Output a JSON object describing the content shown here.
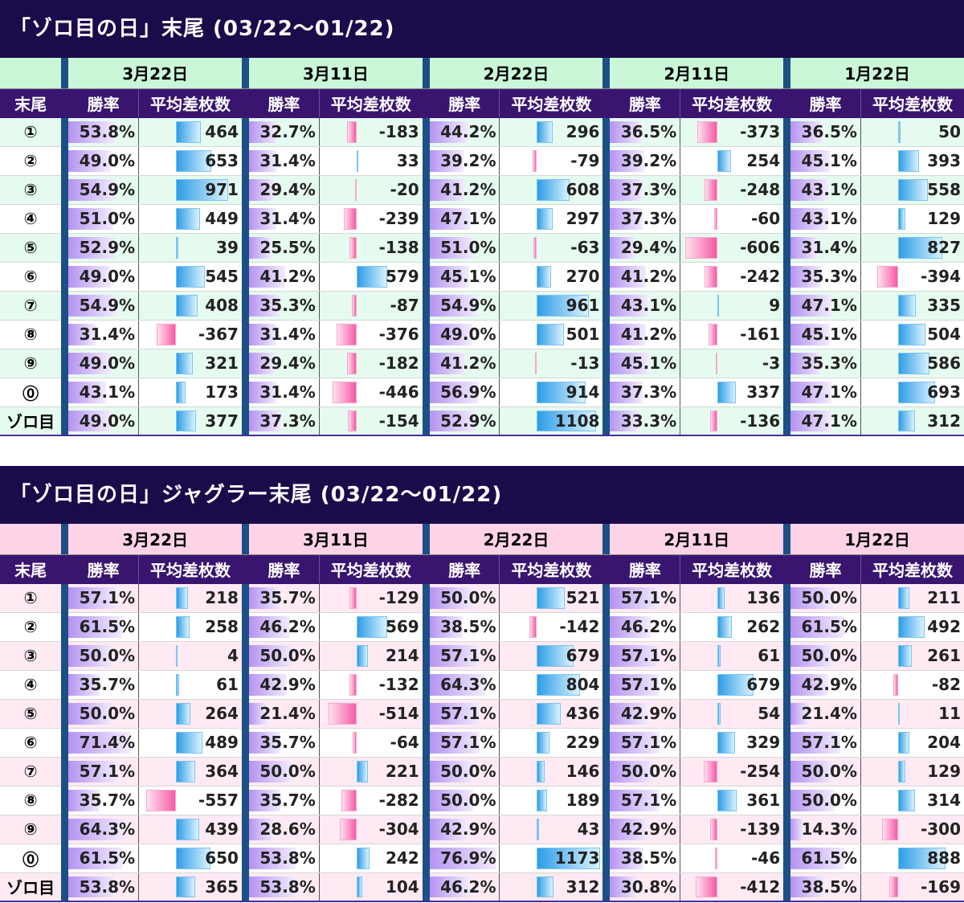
{
  "sections": [
    {
      "title": "「ゾロ目の日」末尾 (03/22〜01/22)",
      "theme_color": "#c9f7d8",
      "row_label_header": "末尾",
      "dates": [
        "3月22日",
        "3月11日",
        "2月22日",
        "2月11日",
        "1月22日"
      ],
      "col_headers": {
        "win_rate": "勝率",
        "avg_diff": "平均差枚数"
      },
      "bar_scale_max": 1200,
      "rows": [
        {
          "label": "①",
          "cells": [
            [
              "53.8%",
              "464"
            ],
            [
              "32.7%",
              "-183"
            ],
            [
              "44.2%",
              "296"
            ],
            [
              "36.5%",
              "-373"
            ],
            [
              "36.5%",
              "50"
            ]
          ]
        },
        {
          "label": "②",
          "cells": [
            [
              "49.0%",
              "653"
            ],
            [
              "31.4%",
              "33"
            ],
            [
              "39.2%",
              "-79"
            ],
            [
              "39.2%",
              "254"
            ],
            [
              "45.1%",
              "393"
            ]
          ]
        },
        {
          "label": "③",
          "cells": [
            [
              "54.9%",
              "971"
            ],
            [
              "29.4%",
              "-20"
            ],
            [
              "41.2%",
              "608"
            ],
            [
              "37.3%",
              "-248"
            ],
            [
              "43.1%",
              "558"
            ]
          ]
        },
        {
          "label": "④",
          "cells": [
            [
              "51.0%",
              "449"
            ],
            [
              "31.4%",
              "-239"
            ],
            [
              "47.1%",
              "297"
            ],
            [
              "37.3%",
              "-60"
            ],
            [
              "43.1%",
              "129"
            ]
          ]
        },
        {
          "label": "⑤",
          "cells": [
            [
              "52.9%",
              "39"
            ],
            [
              "25.5%",
              "-138"
            ],
            [
              "51.0%",
              "-63"
            ],
            [
              "29.4%",
              "-606"
            ],
            [
              "31.4%",
              "827"
            ]
          ]
        },
        {
          "label": "⑥",
          "cells": [
            [
              "49.0%",
              "545"
            ],
            [
              "41.2%",
              "579"
            ],
            [
              "45.1%",
              "270"
            ],
            [
              "41.2%",
              "-242"
            ],
            [
              "35.3%",
              "-394"
            ]
          ]
        },
        {
          "label": "⑦",
          "cells": [
            [
              "54.9%",
              "408"
            ],
            [
              "35.3%",
              "-87"
            ],
            [
              "54.9%",
              "961"
            ],
            [
              "43.1%",
              "9"
            ],
            [
              "47.1%",
              "335"
            ]
          ]
        },
        {
          "label": "⑧",
          "cells": [
            [
              "31.4%",
              "-367"
            ],
            [
              "31.4%",
              "-376"
            ],
            [
              "49.0%",
              "501"
            ],
            [
              "41.2%",
              "-161"
            ],
            [
              "45.1%",
              "504"
            ]
          ]
        },
        {
          "label": "⑨",
          "cells": [
            [
              "49.0%",
              "321"
            ],
            [
              "29.4%",
              "-182"
            ],
            [
              "41.2%",
              "-13"
            ],
            [
              "45.1%",
              "-3"
            ],
            [
              "35.3%",
              "586"
            ]
          ]
        },
        {
          "label": "⓪",
          "cells": [
            [
              "43.1%",
              "173"
            ],
            [
              "31.4%",
              "-446"
            ],
            [
              "56.9%",
              "914"
            ],
            [
              "37.3%",
              "337"
            ],
            [
              "47.1%",
              "693"
            ]
          ]
        },
        {
          "label": "ゾロ目",
          "cells": [
            [
              "49.0%",
              "377"
            ],
            [
              "37.3%",
              "-154"
            ],
            [
              "52.9%",
              "1108"
            ],
            [
              "33.3%",
              "-136"
            ],
            [
              "47.1%",
              "312"
            ]
          ]
        }
      ]
    },
    {
      "title": "「ゾロ目の日」ジャグラー末尾 (03/22〜01/22)",
      "theme_color": "#ffd3e6",
      "row_label_header": "末尾",
      "dates": [
        "3月22日",
        "3月11日",
        "2月22日",
        "2月11日",
        "1月22日"
      ],
      "col_headers": {
        "win_rate": "勝率",
        "avg_diff": "平均差枚数"
      },
      "bar_scale_max": 1200,
      "rows": [
        {
          "label": "①",
          "cells": [
            [
              "57.1%",
              "218"
            ],
            [
              "35.7%",
              "-129"
            ],
            [
              "50.0%",
              "521"
            ],
            [
              "57.1%",
              "136"
            ],
            [
              "50.0%",
              "211"
            ]
          ]
        },
        {
          "label": "②",
          "cells": [
            [
              "61.5%",
              "258"
            ],
            [
              "46.2%",
              "569"
            ],
            [
              "38.5%",
              "-142"
            ],
            [
              "46.2%",
              "262"
            ],
            [
              "61.5%",
              "492"
            ]
          ]
        },
        {
          "label": "③",
          "cells": [
            [
              "50.0%",
              "4"
            ],
            [
              "50.0%",
              "214"
            ],
            [
              "57.1%",
              "679"
            ],
            [
              "57.1%",
              "61"
            ],
            [
              "50.0%",
              "261"
            ]
          ]
        },
        {
          "label": "④",
          "cells": [
            [
              "35.7%",
              "61"
            ],
            [
              "42.9%",
              "-132"
            ],
            [
              "64.3%",
              "804"
            ],
            [
              "57.1%",
              "679"
            ],
            [
              "42.9%",
              "-82"
            ]
          ]
        },
        {
          "label": "⑤",
          "cells": [
            [
              "50.0%",
              "264"
            ],
            [
              "21.4%",
              "-514"
            ],
            [
              "57.1%",
              "436"
            ],
            [
              "42.9%",
              "54"
            ],
            [
              "21.4%",
              "11"
            ]
          ]
        },
        {
          "label": "⑥",
          "cells": [
            [
              "71.4%",
              "489"
            ],
            [
              "35.7%",
              "-64"
            ],
            [
              "57.1%",
              "229"
            ],
            [
              "57.1%",
              "329"
            ],
            [
              "57.1%",
              "204"
            ]
          ]
        },
        {
          "label": "⑦",
          "cells": [
            [
              "57.1%",
              "364"
            ],
            [
              "50.0%",
              "221"
            ],
            [
              "50.0%",
              "146"
            ],
            [
              "50.0%",
              "-254"
            ],
            [
              "50.0%",
              "129"
            ]
          ]
        },
        {
          "label": "⑧",
          "cells": [
            [
              "35.7%",
              "-557"
            ],
            [
              "35.7%",
              "-282"
            ],
            [
              "50.0%",
              "189"
            ],
            [
              "57.1%",
              "361"
            ],
            [
              "50.0%",
              "314"
            ]
          ]
        },
        {
          "label": "⑨",
          "cells": [
            [
              "64.3%",
              "439"
            ],
            [
              "28.6%",
              "-304"
            ],
            [
              "42.9%",
              "43"
            ],
            [
              "42.9%",
              "-139"
            ],
            [
              "14.3%",
              "-300"
            ]
          ]
        },
        {
          "label": "⓪",
          "cells": [
            [
              "61.5%",
              "650"
            ],
            [
              "53.8%",
              "242"
            ],
            [
              "76.9%",
              "1173"
            ],
            [
              "38.5%",
              "-46"
            ],
            [
              "61.5%",
              "888"
            ]
          ]
        },
        {
          "label": "ゾロ目",
          "cells": [
            [
              "53.8%",
              "365"
            ],
            [
              "53.8%",
              "104"
            ],
            [
              "46.2%",
              "312"
            ],
            [
              "30.8%",
              "-412"
            ],
            [
              "38.5%",
              "-169"
            ]
          ]
        }
      ]
    }
  ]
}
